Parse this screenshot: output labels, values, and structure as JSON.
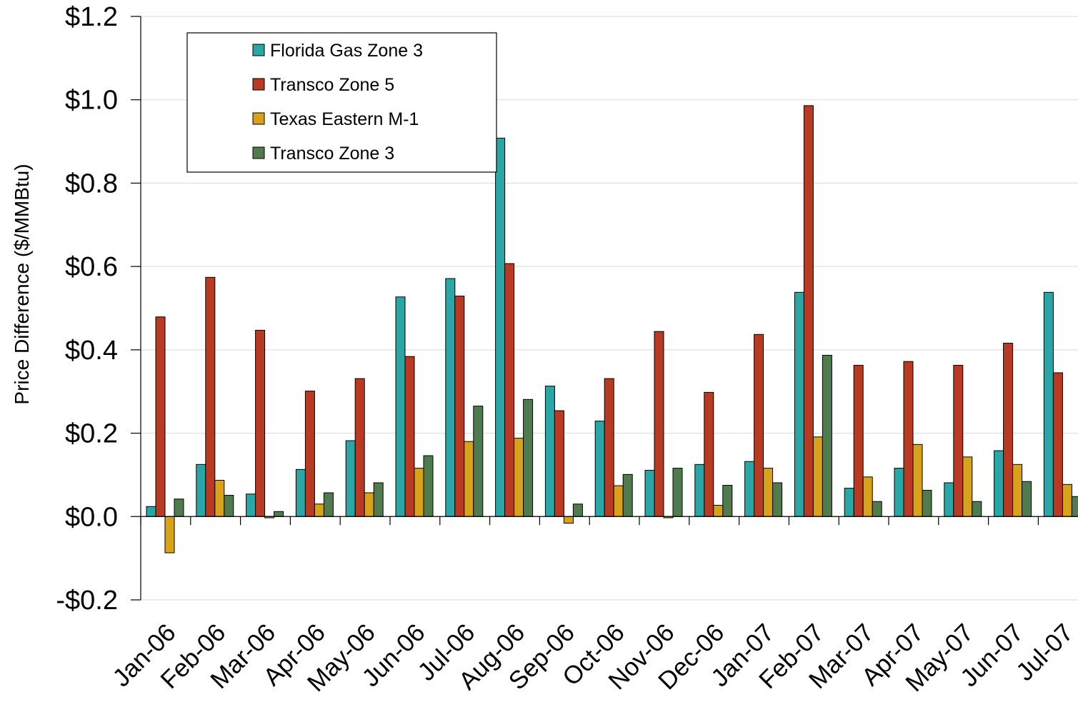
{
  "chart_data": {
    "type": "bar",
    "ylabel": "Price Difference  ($/MMBtu)",
    "ylim": [
      -0.2,
      1.2
    ],
    "yticks": [
      -0.2,
      0.0,
      0.2,
      0.4,
      0.6,
      0.8,
      1.0,
      1.2
    ],
    "ytick_labels": [
      "-$0.2",
      "$0.0",
      "$0.2",
      "$0.4",
      "$0.6",
      "$0.8",
      "$1.0",
      "$1.2"
    ],
    "grid": true,
    "legend_position": "top-left",
    "categories": [
      "Jan-06",
      "Feb-06",
      "Mar-06",
      "Apr-06",
      "May-06",
      "Jun-06",
      "Jul-06",
      "Aug-06",
      "Sep-06",
      "Oct-06",
      "Nov-06",
      "Dec-06",
      "Jan-07",
      "Feb-07",
      "Mar-07",
      "Apr-07",
      "May-07",
      "Jun-07",
      "Jul-07"
    ],
    "series": [
      {
        "name": "Florida Gas Zone 3",
        "color": "#2aa6a6",
        "values": [
          0.024,
          0.125,
          0.054,
          0.113,
          0.182,
          0.527,
          0.571,
          0.908,
          0.313,
          0.229,
          0.111,
          0.125,
          0.132,
          0.538,
          0.068,
          0.116,
          0.081,
          0.158,
          0.538
        ]
      },
      {
        "name": "Transco Zone 5",
        "color": "#b93a22",
        "values": [
          0.479,
          0.574,
          0.447,
          0.301,
          0.331,
          0.384,
          0.529,
          0.607,
          0.254,
          0.331,
          0.444,
          0.298,
          0.437,
          0.986,
          0.363,
          0.372,
          0.363,
          0.416,
          0.345
        ]
      },
      {
        "name": "Texas Eastern M-1",
        "color": "#d9a21b",
        "values": [
          -0.087,
          0.087,
          -0.003,
          0.03,
          0.057,
          0.116,
          0.18,
          0.188,
          -0.016,
          0.074,
          -0.003,
          0.027,
          0.116,
          0.191,
          0.095,
          0.173,
          0.143,
          0.125,
          0.077
        ]
      },
      {
        "name": "Transco Zone 3",
        "color": "#4f7b4f",
        "values": [
          0.042,
          0.051,
          0.012,
          0.057,
          0.081,
          0.146,
          0.265,
          0.281,
          0.03,
          0.101,
          0.116,
          0.075,
          0.081,
          0.387,
          0.036,
          0.063,
          0.036,
          0.084,
          0.048
        ]
      }
    ]
  }
}
